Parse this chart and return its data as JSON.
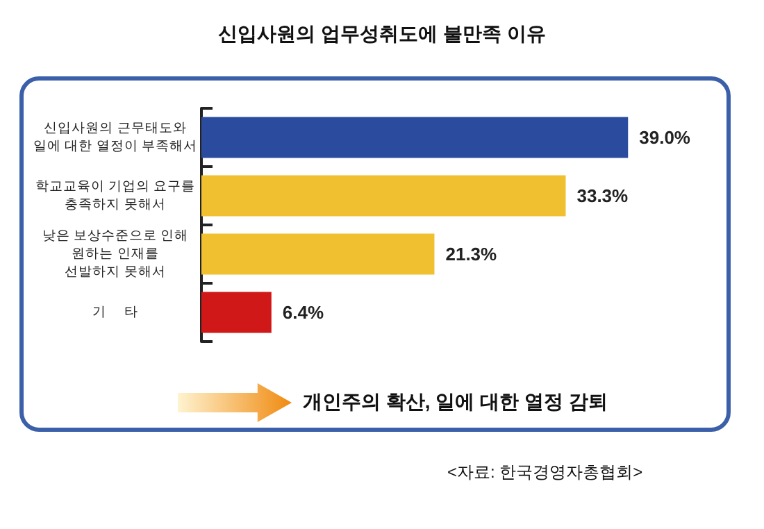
{
  "chart_data": {
    "type": "bar",
    "orientation": "horizontal",
    "title": "신입사원의 업무성취도에 불만족 이유",
    "categories": [
      "신입사원의 근무태도와\n일에 대한 열정이 부족해서",
      "학교교육이 기업의 요구를\n충족하지 못해서",
      "낮은 보상수준으로 인해\n원하는 인재를\n선발하지 못해서",
      "기     타"
    ],
    "values": [
      39.0,
      33.3,
      21.3,
      6.4
    ],
    "colors": [
      "#2b4c9e",
      "#f0c030",
      "#f0c030",
      "#d01818"
    ],
    "value_labels": [
      "39.0%",
      "33.3%",
      "21.3%",
      "6.4%"
    ],
    "annotations": [
      "개인주의 확산, 일에 대한 열정 감퇴",
      "<자료: 한국경영자총협회>"
    ]
  }
}
